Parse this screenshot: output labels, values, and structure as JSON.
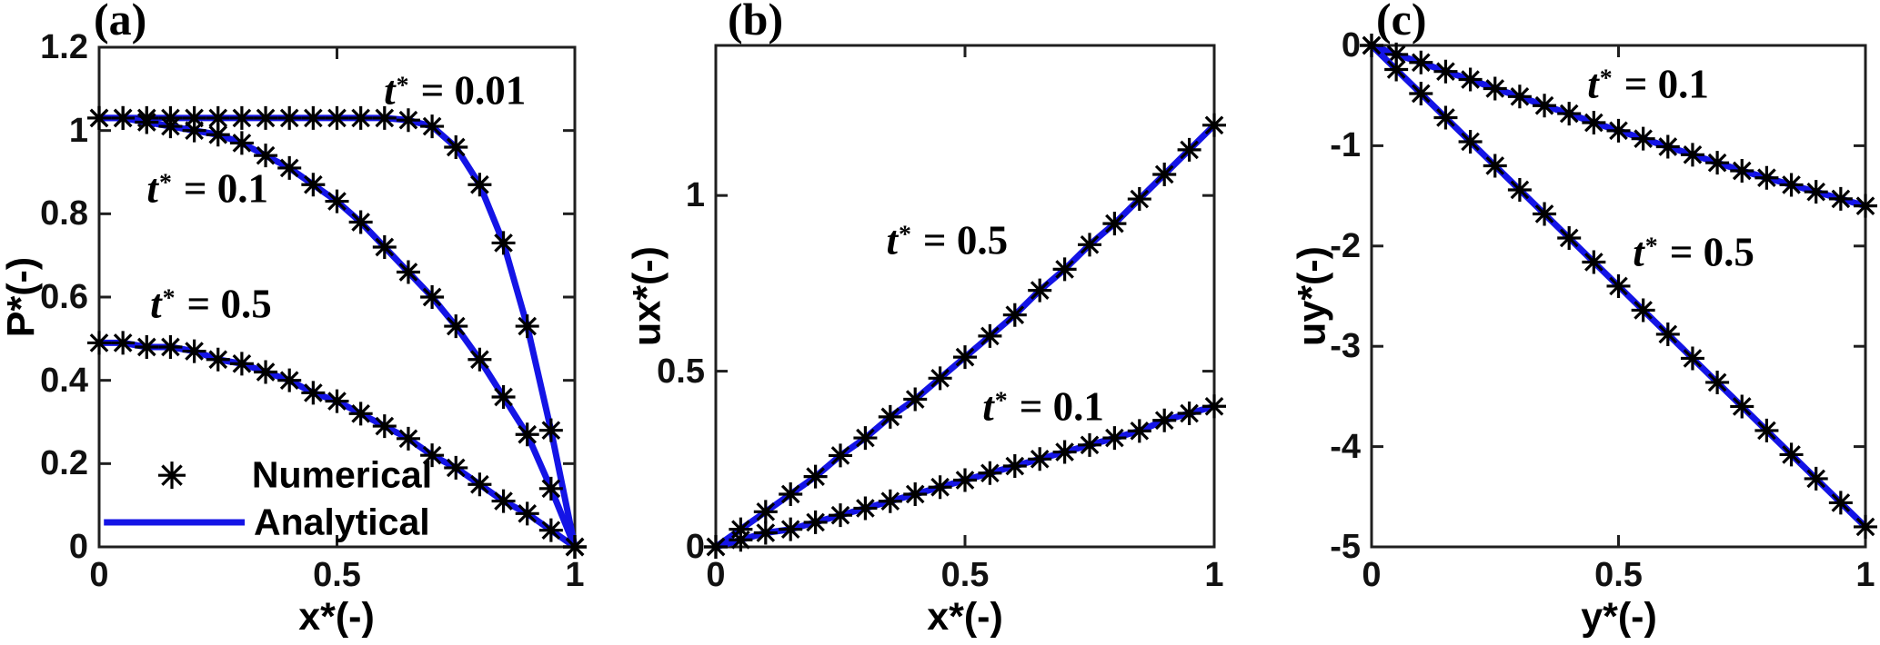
{
  "figure": {
    "background": "#ffffff",
    "axis_color": "#1f1f1f",
    "line_color": "#1414e6",
    "marker_color": "#000000",
    "text_color": "#000000"
  },
  "chart_data": [
    {
      "type": "line",
      "panel_label": "(a)",
      "xlabel": "x*(-)",
      "ylabel": "P*(-)",
      "xlim": [
        0,
        1
      ],
      "ylim": [
        0,
        1.2
      ],
      "xticks": [
        0,
        0.5,
        1
      ],
      "xtick_labels": [
        "0",
        "0.5",
        "1"
      ],
      "yticks": [
        0,
        0.2,
        0.4,
        0.6,
        0.8,
        1,
        1.2
      ],
      "ytick_labels": [
        "0",
        "0.2",
        "0.4",
        "0.6",
        "0.8",
        "1",
        "1.2"
      ],
      "x": [
        0,
        0.05,
        0.1,
        0.15,
        0.2,
        0.25,
        0.3,
        0.35,
        0.4,
        0.45,
        0.5,
        0.55,
        0.6,
        0.65,
        0.7,
        0.75,
        0.8,
        0.85,
        0.9,
        0.95,
        1
      ],
      "series": [
        {
          "name": "t* = 0.01",
          "values": [
            1.03,
            1.03,
            1.03,
            1.03,
            1.03,
            1.03,
            1.03,
            1.03,
            1.03,
            1.03,
            1.03,
            1.03,
            1.03,
            1.025,
            1.01,
            0.96,
            0.87,
            0.73,
            0.53,
            0.28,
            0
          ]
        },
        {
          "name": "t* = 0.1",
          "values": [
            1.03,
            1.03,
            1.02,
            1.01,
            1.0,
            0.99,
            0.97,
            0.94,
            0.91,
            0.87,
            0.83,
            0.78,
            0.72,
            0.66,
            0.6,
            0.53,
            0.45,
            0.36,
            0.27,
            0.14,
            0
          ]
        },
        {
          "name": "t* = 0.5",
          "values": [
            0.49,
            0.49,
            0.48,
            0.48,
            0.47,
            0.45,
            0.44,
            0.42,
            0.4,
            0.37,
            0.35,
            0.32,
            0.29,
            0.26,
            0.22,
            0.19,
            0.15,
            0.11,
            0.08,
            0.04,
            0
          ]
        }
      ],
      "annotations": [
        {
          "var": "t",
          "sup": "*",
          "text": "= 0.01",
          "x": 0.748,
          "y": 1.095
        },
        {
          "var": "t",
          "sup": "*",
          "text": "= 0.1",
          "x": 0.228,
          "y": 0.86
        },
        {
          "var": "t",
          "sup": "*",
          "text": "= 0.5",
          "x": 0.235,
          "y": 0.583
        }
      ],
      "legend_items": [
        {
          "type": "marker",
          "label": "Numerical",
          "marker_x": 0.153,
          "row_y": 0.172,
          "label_x": 0.321
        },
        {
          "type": "line",
          "label": "Analytical",
          "line_x": [
            0.01,
            0.306
          ],
          "row_y": 0.059,
          "label_x": 0.325
        }
      ]
    },
    {
      "type": "line",
      "panel_label": "(b)",
      "xlabel": "x*(-)",
      "ylabel": "ux*(-)",
      "xlim": [
        0,
        1
      ],
      "ylim": [
        0,
        1.427
      ],
      "xticks": [
        0,
        0.5,
        1
      ],
      "xtick_labels": [
        "0",
        "0.5",
        "1"
      ],
      "yticks": [
        0,
        0.5,
        1
      ],
      "ytick_labels": [
        "0",
        "0.5",
        "1"
      ],
      "x": [
        0,
        0.05,
        0.1,
        0.15,
        0.2,
        0.25,
        0.3,
        0.35,
        0.4,
        0.45,
        0.5,
        0.55,
        0.6,
        0.65,
        0.7,
        0.75,
        0.8,
        0.85,
        0.9,
        0.95,
        1
      ],
      "series": [
        {
          "name": "t* = 0.5",
          "values": [
            0,
            0.05,
            0.1,
            0.15,
            0.2,
            0.26,
            0.31,
            0.37,
            0.42,
            0.48,
            0.54,
            0.6,
            0.66,
            0.73,
            0.79,
            0.86,
            0.92,
            0.99,
            1.06,
            1.13,
            1.2
          ]
        },
        {
          "name": "t* = 0.1",
          "values": [
            0,
            0.02,
            0.04,
            0.05,
            0.07,
            0.09,
            0.11,
            0.13,
            0.15,
            0.17,
            0.19,
            0.21,
            0.23,
            0.25,
            0.27,
            0.29,
            0.31,
            0.33,
            0.36,
            0.38,
            0.4
          ]
        }
      ],
      "annotations": [
        {
          "var": "t",
          "sup": "*",
          "text": "= 0.5",
          "x": 0.464,
          "y": 0.872
        },
        {
          "var": "t",
          "sup": "*",
          "text": "= 0.1",
          "x": 0.657,
          "y": 0.399
        }
      ],
      "legend_items": []
    },
    {
      "type": "line",
      "panel_label": "(c)",
      "xlabel": "y*(-)",
      "ylabel": "uy*(-)",
      "xlim": [
        0,
        1
      ],
      "ylim": [
        -5,
        0
      ],
      "xticks": [
        0,
        0.5,
        1
      ],
      "xtick_labels": [
        "0",
        "0.5",
        "1"
      ],
      "yticks": [
        0,
        -1,
        -2,
        -3,
        -4,
        -5
      ],
      "ytick_labels": [
        "0",
        "-1",
        "-2",
        "-3",
        "-4",
        "-5"
      ],
      "x": [
        0,
        0.05,
        0.1,
        0.15,
        0.2,
        0.25,
        0.3,
        0.35,
        0.4,
        0.45,
        0.5,
        0.55,
        0.6,
        0.65,
        0.7,
        0.75,
        0.8,
        0.85,
        0.9,
        0.95,
        1
      ],
      "series": [
        {
          "name": "t* = 0.1",
          "values": [
            0,
            -0.09,
            -0.17,
            -0.26,
            -0.34,
            -0.43,
            -0.51,
            -0.6,
            -0.68,
            -0.77,
            -0.85,
            -0.93,
            -1.01,
            -1.09,
            -1.17,
            -1.25,
            -1.32,
            -1.39,
            -1.46,
            -1.53,
            -1.6
          ]
        },
        {
          "name": "t* = 0.5",
          "values": [
            0,
            -0.24,
            -0.48,
            -0.72,
            -0.96,
            -1.2,
            -1.44,
            -1.68,
            -1.92,
            -2.16,
            -2.4,
            -2.64,
            -2.88,
            -3.12,
            -3.36,
            -3.6,
            -3.84,
            -4.08,
            -4.32,
            -4.56,
            -4.8
          ]
        }
      ],
      "annotations": [
        {
          "var": "t",
          "sup": "*",
          "text": "= 0.1",
          "x": 0.56,
          "y": -0.389
        },
        {
          "var": "t",
          "sup": "*",
          "text": "= 0.5",
          "x": 0.652,
          "y": -2.065
        }
      ],
      "legend_items": []
    }
  ]
}
